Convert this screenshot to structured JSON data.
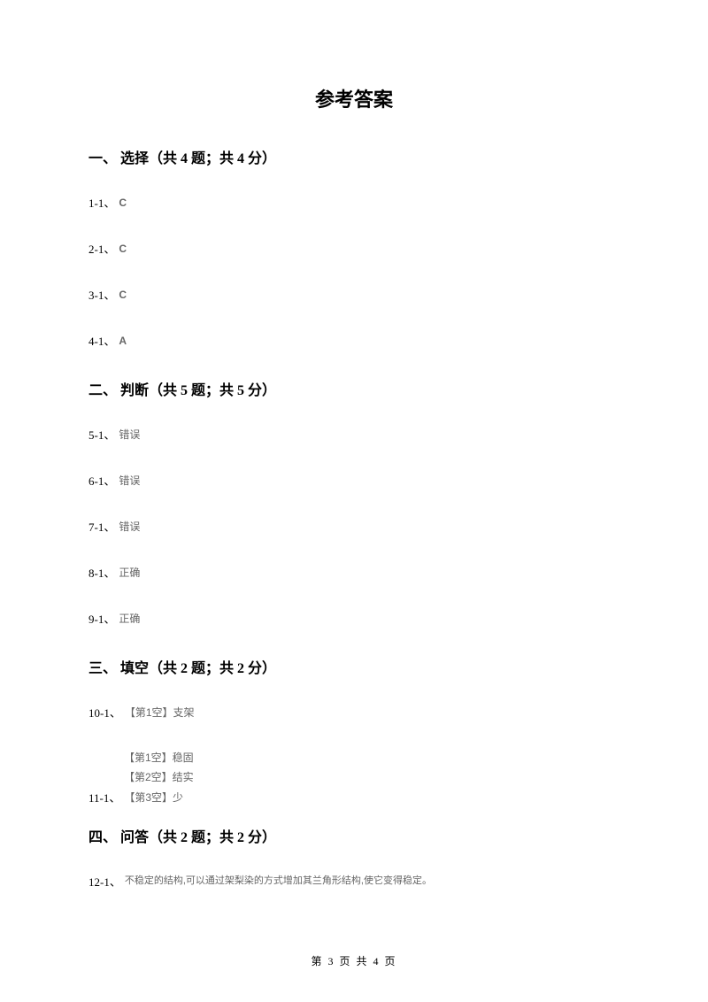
{
  "title": "参考答案",
  "sections": {
    "one": {
      "header": "一、 选择（共 4 题；共 4 分）",
      "answers": [
        {
          "num": "1-1、",
          "val": "C"
        },
        {
          "num": "2-1、",
          "val": "C"
        },
        {
          "num": "3-1、",
          "val": "C"
        },
        {
          "num": "4-1、",
          "val": "A"
        }
      ]
    },
    "two": {
      "header": "二、 判断（共 5 题；共 5 分）",
      "answers": [
        {
          "num": "5-1、",
          "val": "错误"
        },
        {
          "num": "6-1、",
          "val": "错误"
        },
        {
          "num": "7-1、",
          "val": "错误"
        },
        {
          "num": "8-1、",
          "val": "正确"
        },
        {
          "num": "9-1、",
          "val": "正确"
        }
      ]
    },
    "three": {
      "header": "三、 填空（共 2 题；共 2 分）",
      "answer10": {
        "num": "10-1、",
        "line1": "【第1空】支架"
      },
      "answer11": {
        "num": "11-1、",
        "line1": "【第1空】稳固",
        "line2": "【第2空】结实",
        "line3": "【第3空】少"
      }
    },
    "four": {
      "header": "四、 问答（共 2 题；共 2 分）",
      "answer12": {
        "num": "12-1、",
        "text": "不稳定的结构,可以通过架梨染的方式增加其兰角形结构,使它变得稳定。"
      }
    }
  },
  "footer": "第 3 页 共 4 页"
}
